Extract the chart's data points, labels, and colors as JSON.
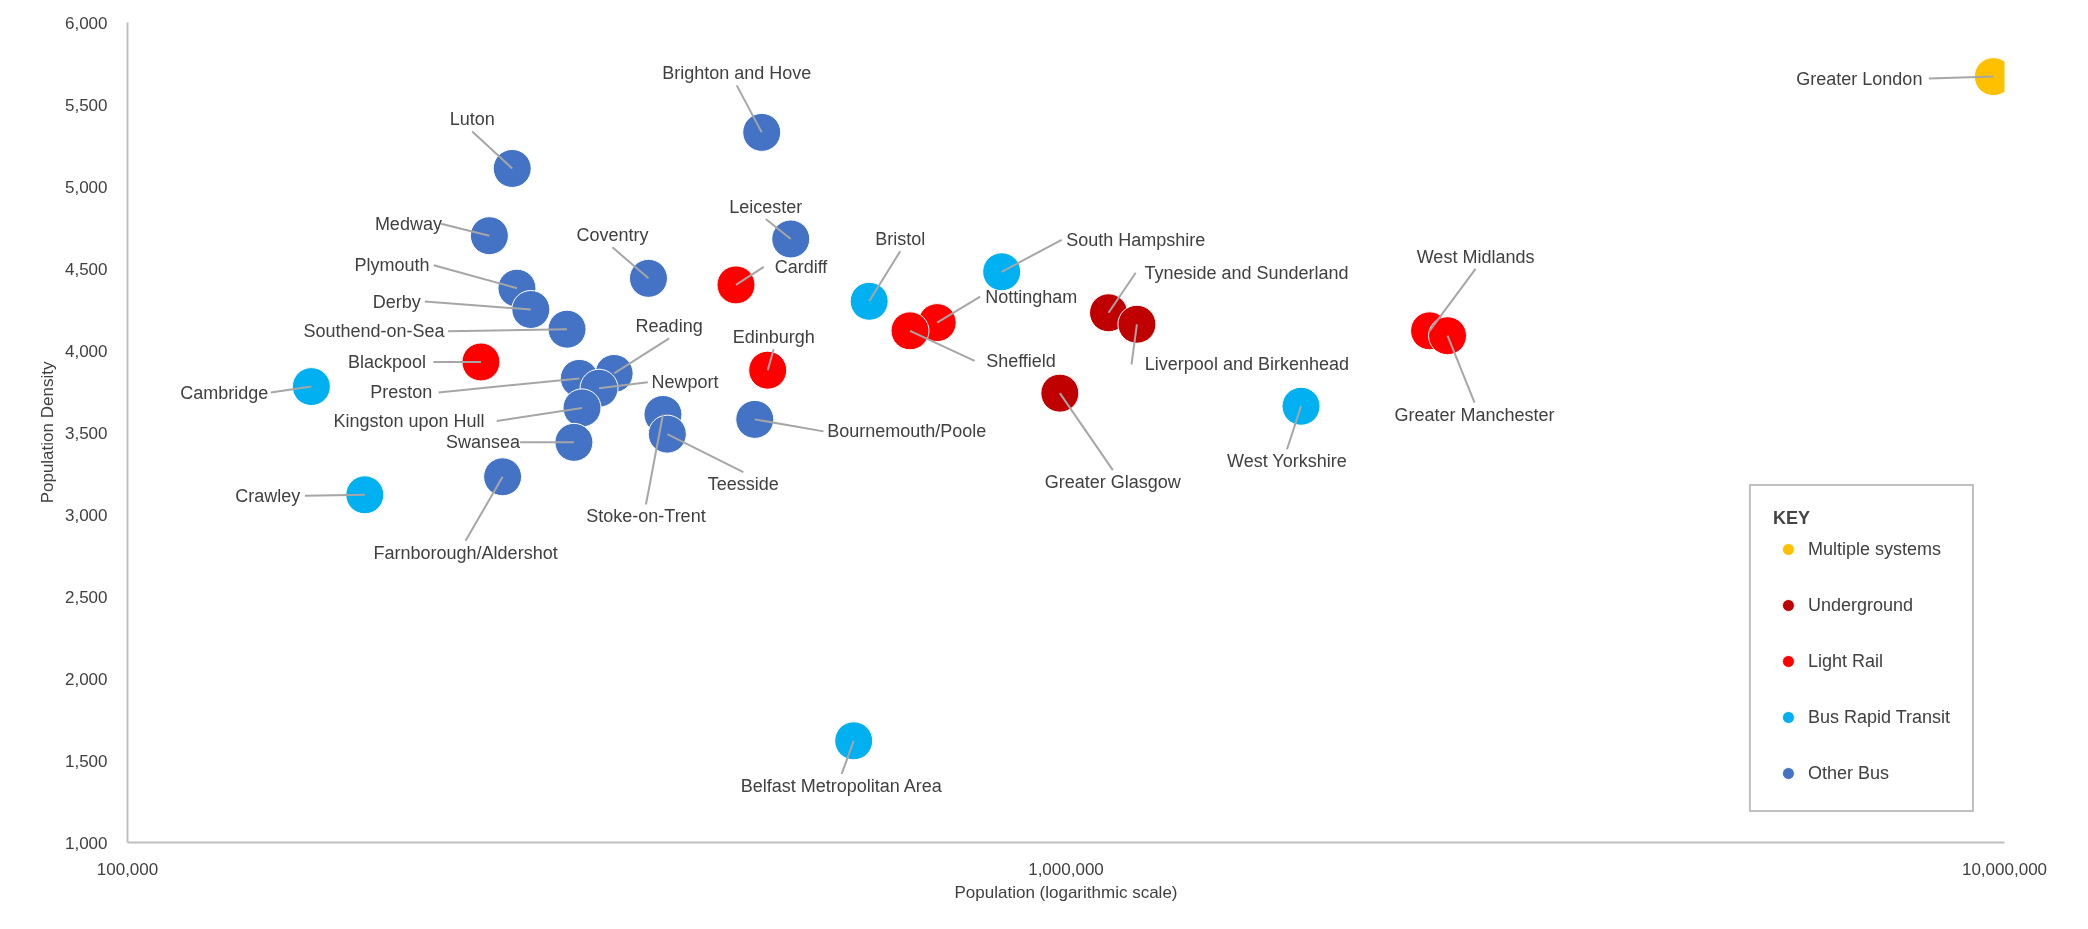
{
  "chart_data": {
    "type": "scatter",
    "xlabel": "Population (logarithmic scale)",
    "ylabel": "Population Density",
    "legend_title": "KEY",
    "legend": "bottom right",
    "grid": false,
    "marker": "circle",
    "log": "x",
    "xlim": [
      100000,
      10000000
    ],
    "xticks": [
      {
        "value": 100000,
        "label": "100,000"
      },
      {
        "value": 1000000,
        "label": "1,000,000"
      },
      {
        "value": 10000000,
        "label": "10,000,000"
      }
    ],
    "ylim": [
      1000,
      6000
    ],
    "yticks": [
      {
        "value": 1000,
        "label": "1,000"
      },
      {
        "value": 1500,
        "label": "1,500"
      },
      {
        "value": 2000,
        "label": "2,000"
      },
      {
        "value": 2500,
        "label": "2,500"
      },
      {
        "value": 3000,
        "label": "3,000"
      },
      {
        "value": 3500,
        "label": "3,500"
      },
      {
        "value": 4000,
        "label": "4,000"
      },
      {
        "value": 4500,
        "label": "4,500"
      },
      {
        "value": 5000,
        "label": "5,000"
      },
      {
        "value": 5500,
        "label": "5,500"
      },
      {
        "value": 6000,
        "label": "6,000"
      }
    ],
    "series": [
      {
        "name": "Multiple systems",
        "color": "#ffc000",
        "x": [
          9730000
        ],
        "values": [
          5670
        ]
      },
      {
        "name": "Underground",
        "color": "#c00000",
        "x": [
          1110000,
          1190000,
          985000
        ],
        "values": [
          4230,
          4160,
          3740
        ]
      },
      {
        "name": "Light Rail",
        "color": "#ff0000",
        "x": [
          2440000,
          2550000,
          729000,
          682000,
          445000,
          481000,
          238000
        ],
        "values": [
          4120,
          4090,
          4170,
          4120,
          4400,
          3880,
          3930
        ]
      },
      {
        "name": "Bus Rapid Transit",
        "color": "#00b0f0",
        "x": [
          617000,
          854000,
          1780000,
          594000,
          157000,
          179000
        ],
        "values": [
          4300,
          4480,
          3660,
          1620,
          3780,
          3120
        ]
      },
      {
        "name": "Other Bus",
        "color": "#4472c4",
        "x": [
          474000,
          257000,
          243000,
          509000,
          359000,
          260000,
          269000,
          294000,
          330000,
          303000,
          318000,
          305000,
          299000,
          251000,
          372000,
          376000,
          466000
        ],
        "values": [
          5330,
          5110,
          4700,
          4680,
          4440,
          4380,
          4250,
          4130,
          3860,
          3830,
          3770,
          3650,
          3440,
          3230,
          3610,
          3490,
          3580
        ]
      }
    ],
    "annotations": [
      {
        "text": "Greater London",
        "x": 9730000,
        "y": 5670
      },
      {
        "text": "West Midlands",
        "x": 2440000,
        "y": 4120
      },
      {
        "text": "Greater Manchester",
        "x": 2550000,
        "y": 4090
      },
      {
        "text": "Tyneside and Sunderland",
        "x": 1110000,
        "y": 4230
      },
      {
        "text": "Liverpool and Birkenhead",
        "x": 1190000,
        "y": 4160
      },
      {
        "text": "Greater Glasgow",
        "x": 985000,
        "y": 3740
      },
      {
        "text": "Nottingham",
        "x": 729000,
        "y": 4170
      },
      {
        "text": "Sheffield",
        "x": 682000,
        "y": 4120
      },
      {
        "text": "Cardiff",
        "x": 445000,
        "y": 4400
      },
      {
        "text": "Edinburgh",
        "x": 481000,
        "y": 3880
      },
      {
        "text": "Blackpool",
        "x": 238000,
        "y": 3930
      },
      {
        "text": "Bristol",
        "x": 617000,
        "y": 4300
      },
      {
        "text": "South Hampshire",
        "x": 854000,
        "y": 4480
      },
      {
        "text": "West Yorkshire",
        "x": 1780000,
        "y": 3660
      },
      {
        "text": "Belfast Metropolitan Area",
        "x": 594000,
        "y": 1620
      },
      {
        "text": "Cambridge",
        "x": 157000,
        "y": 3780
      },
      {
        "text": "Crawley",
        "x": 179000,
        "y": 3120
      },
      {
        "text": "Brighton and Hove",
        "x": 474000,
        "y": 5330
      },
      {
        "text": "Luton",
        "x": 257000,
        "y": 5110
      },
      {
        "text": "Medway",
        "x": 243000,
        "y": 4700
      },
      {
        "text": "Leicester",
        "x": 509000,
        "y": 4680
      },
      {
        "text": "Coventry",
        "x": 359000,
        "y": 4440
      },
      {
        "text": "Plymouth",
        "x": 260000,
        "y": 4380
      },
      {
        "text": "Derby",
        "x": 269000,
        "y": 4250
      },
      {
        "text": "Southend-on-Sea",
        "x": 294000,
        "y": 4130
      },
      {
        "text": "Reading",
        "x": 330000,
        "y": 3860
      },
      {
        "text": "Preston",
        "x": 303000,
        "y": 3830
      },
      {
        "text": "Newport",
        "x": 318000,
        "y": 3770
      },
      {
        "text": "Kingston upon Hull",
        "x": 305000,
        "y": 3650
      },
      {
        "text": "Swansea",
        "x": 299000,
        "y": 3440
      },
      {
        "text": "Farnborough/Aldershot",
        "x": 251000,
        "y": 3230
      },
      {
        "text": "Stoke-on-Trent",
        "x": 372000,
        "y": 3610
      },
      {
        "text": "Teesside",
        "x": 376000,
        "y": 3490
      },
      {
        "text": "Bournemouth/Poole",
        "x": 466000,
        "y": 3580
      }
    ]
  }
}
